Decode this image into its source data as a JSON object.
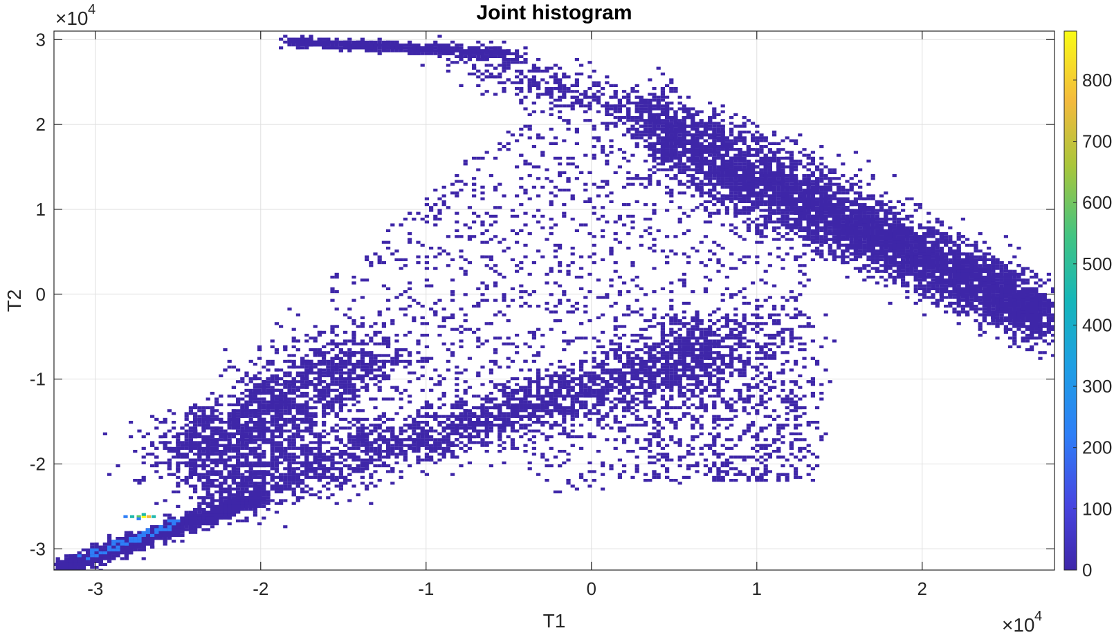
{
  "chart_data": {
    "type": "heatmap",
    "title": "Joint histogram",
    "xlabel": "T1",
    "ylabel": "T2",
    "x_exponent_base": "×10",
    "x_exponent_power": "4",
    "y_exponent_base": "×10",
    "y_exponent_power": "4",
    "xlim": [
      -3.25,
      2.8
    ],
    "ylim": [
      -3.25,
      3.1
    ],
    "xticks": [
      -3,
      -2,
      -1,
      0,
      1,
      2
    ],
    "xtick_labels": [
      "-3",
      "-2",
      "-1",
      "0",
      "1",
      "2"
    ],
    "yticks": [
      -3,
      -2,
      -1,
      0,
      1,
      2,
      3
    ],
    "ytick_labels": [
      "-3",
      "-2",
      "-1",
      "0",
      "1",
      "2",
      "3"
    ],
    "grid": true,
    "colormap": "parula",
    "colorbar": {
      "range": [
        0,
        880
      ],
      "ticks": [
        0,
        100,
        200,
        300,
        400,
        500,
        600,
        700,
        800
      ],
      "tick_labels": [
        "0",
        "100",
        "200",
        "300",
        "400",
        "500",
        "600",
        "700",
        "800"
      ],
      "placement": "right"
    },
    "peak": {
      "x": -2.75,
      "y": -2.62,
      "count": 870
    },
    "density_clusters": [
      {
        "region": "upper-right diagonal band",
        "x_range": [
          0.5,
          2.75
        ],
        "y_range": [
          -0.4,
          1.9
        ],
        "intensity": "moderate"
      },
      {
        "region": "top strip",
        "x_range": [
          -1.9,
          -0.5
        ],
        "y_range": [
          2.9,
          3.0
        ],
        "intensity": "moderate"
      },
      {
        "region": "lower-left tail",
        "x_range": [
          -3.25,
          -2.2
        ],
        "y_range": [
          -3.25,
          -2.35
        ],
        "intensity": "high"
      },
      {
        "region": "left lobe",
        "x_range": [
          -2.6,
          -1.4
        ],
        "y_range": [
          -2.2,
          -0.5
        ],
        "intensity": "low"
      },
      {
        "region": "middle sparse diamond",
        "x_range": [
          -1.5,
          1.3
        ],
        "y_range": [
          -2.5,
          2.8
        ],
        "intensity": "low"
      }
    ]
  },
  "colors": {
    "low": "#3e26a8",
    "mid_blue": "#2e7ef7",
    "cyan": "#1fb8ac",
    "green": "#5ccb5f",
    "orange": "#f1b93b",
    "high": "#f9fb15",
    "grid": "#dfdfdf",
    "axis": "#262626"
  }
}
